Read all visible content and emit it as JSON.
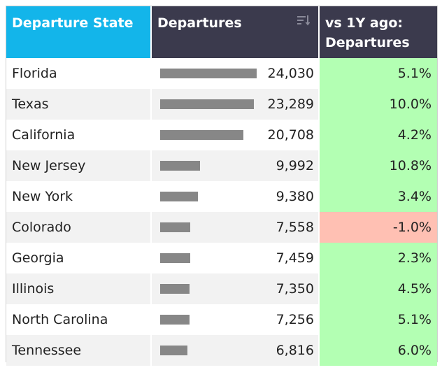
{
  "header": {
    "state_label": "Departure State",
    "departures_label": "Departures",
    "vs_label_line1": "vs 1Y ago:",
    "vs_label_line2": "Departures",
    "sort_icon": "sort-descending-icon"
  },
  "colors": {
    "state_header_bg": "#13b5ea",
    "dark_header_bg": "#3b3a4d",
    "positive_bg": "#b3ffb3",
    "negative_bg": "#ffc0b3",
    "bar": "#878787"
  },
  "max_departures": 24030,
  "rows": [
    {
      "state": "Florida",
      "departures": "24,030",
      "departures_num": 24030,
      "vs": "5.1%",
      "positive": true
    },
    {
      "state": "Texas",
      "departures": "23,289",
      "departures_num": 23289,
      "vs": "10.0%",
      "positive": true
    },
    {
      "state": "California",
      "departures": "20,708",
      "departures_num": 20708,
      "vs": "4.2%",
      "positive": true
    },
    {
      "state": "New Jersey",
      "departures": "9,992",
      "departures_num": 9992,
      "vs": "10.8%",
      "positive": true
    },
    {
      "state": "New York",
      "departures": "9,380",
      "departures_num": 9380,
      "vs": "3.4%",
      "positive": true
    },
    {
      "state": "Colorado",
      "departures": "7,558",
      "departures_num": 7558,
      "vs": "-1.0%",
      "positive": false
    },
    {
      "state": "Georgia",
      "departures": "7,459",
      "departures_num": 7459,
      "vs": "2.3%",
      "positive": true
    },
    {
      "state": "Illinois",
      "departures": "7,350",
      "departures_num": 7350,
      "vs": "4.5%",
      "positive": true
    },
    {
      "state": "North Carolina",
      "departures": "7,256",
      "departures_num": 7256,
      "vs": "5.1%",
      "positive": true
    },
    {
      "state": "Tennessee",
      "departures": "6,816",
      "departures_num": 6816,
      "vs": "6.0%",
      "positive": true
    }
  ]
}
